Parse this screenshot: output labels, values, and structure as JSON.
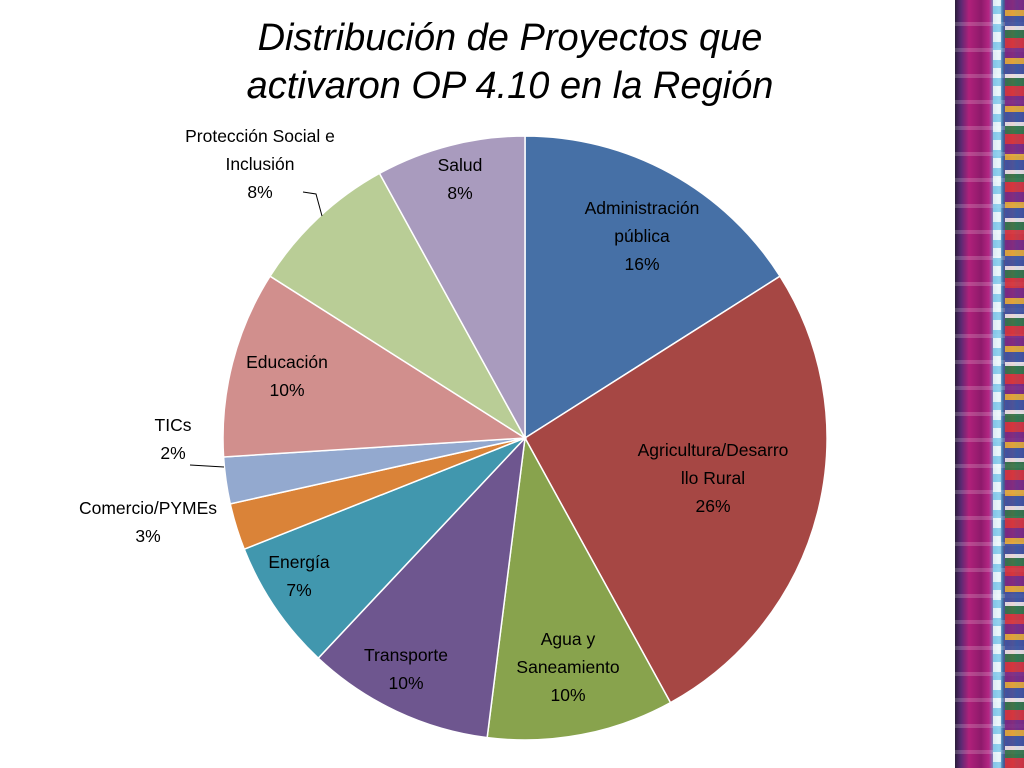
{
  "chart_data": {
    "type": "pie",
    "title": [
      "Distribución de Proyectos que",
      "activaron OP 4.10 en la Región"
    ],
    "slices": [
      {
        "label": [
          "Administración",
          "pública"
        ],
        "value": 16,
        "pct": "16%",
        "color": "#4670A6"
      },
      {
        "label": [
          "Agricultura/Desarro",
          "llo Rural"
        ],
        "value": 26,
        "pct": "26%",
        "color": "#A64744"
      },
      {
        "label": [
          "Agua y",
          "Saneamiento"
        ],
        "value": 10,
        "pct": "10%",
        "color": "#88A34D"
      },
      {
        "label": [
          "Transporte"
        ],
        "value": 10,
        "pct": "10%",
        "color": "#6E568F"
      },
      {
        "label": [
          "Energía"
        ],
        "value": 7,
        "pct": "7%",
        "color": "#4197AE"
      },
      {
        "label": [
          "Comercio/PYMEs"
        ],
        "value": 2.5,
        "pct": "3%",
        "color": "#DA8338"
      },
      {
        "label": [
          "TICs"
        ],
        "value": 2.5,
        "pct": "2%",
        "color": "#93A9CF"
      },
      {
        "label": [
          "Educación"
        ],
        "value": 10,
        "pct": "10%",
        "color": "#D18F8D"
      },
      {
        "label": [
          "Protección Social e",
          "Inclusión"
        ],
        "value": 8,
        "pct": "8%",
        "color": "#B9CD96"
      },
      {
        "label": [
          "Salud"
        ],
        "value": 8,
        "pct": "8%",
        "color": "#A99BBE"
      }
    ]
  }
}
